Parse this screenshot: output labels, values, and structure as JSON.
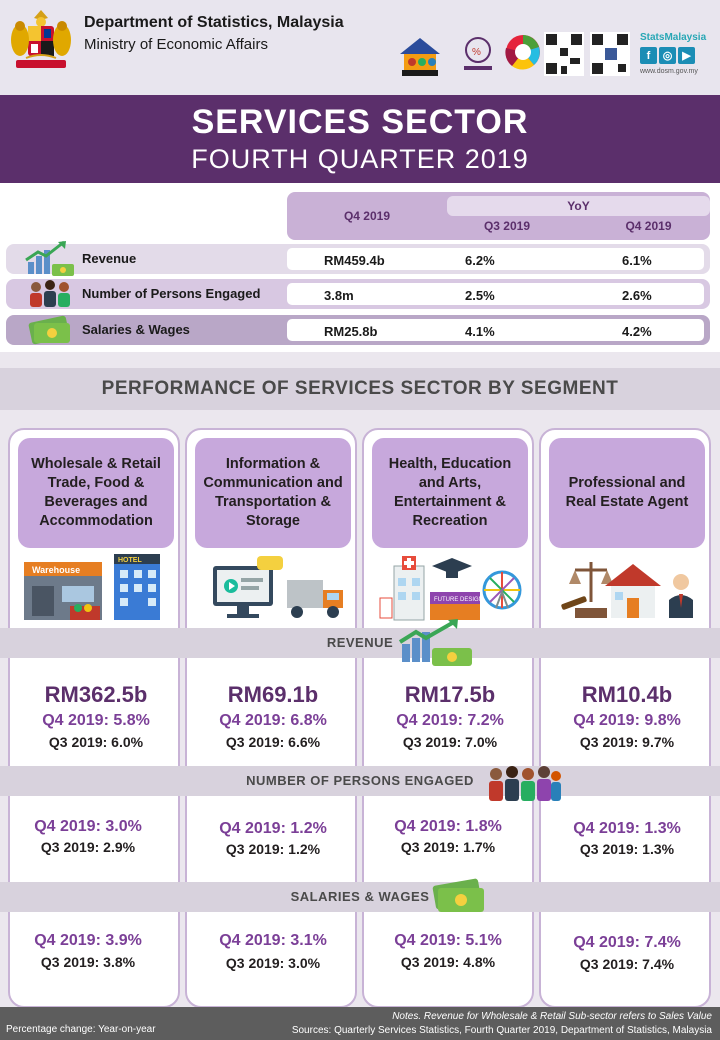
{
  "header": {
    "agency": "Department of Statistics, Malaysia",
    "ministry": "Ministry of Economic Affairs",
    "brand": "StatsMalaysia",
    "website": "www.dosm.gov.my"
  },
  "title": {
    "line1": "SERVICES SECTOR",
    "line2": "FOURTH QUARTER 2019"
  },
  "summary": {
    "col_q4": "Q4 2019",
    "col_yoy": "YoY",
    "col_yoy_q3": "Q3 2019",
    "col_yoy_q4": "Q4 2019",
    "rows": [
      {
        "label": "Revenue",
        "q4": "RM459.4b",
        "yoy_q3": "6.2%",
        "yoy_q4": "6.1%"
      },
      {
        "label": "Number of Persons Engaged",
        "q4": "3.8m",
        "yoy_q3": "2.5%",
        "yoy_q4": "2.6%"
      },
      {
        "label": "Salaries & Wages",
        "q4": "RM25.8b",
        "yoy_q3": "4.1%",
        "yoy_q4": "4.2%"
      }
    ]
  },
  "performance": {
    "title": "PERFORMANCE OF SERVICES SECTOR BY SEGMENT",
    "bands": {
      "revenue": "REVENUE",
      "persons": "NUMBER OF PERSONS  ENGAGED",
      "salaries": "SALARIES & WAGES"
    },
    "segments": [
      {
        "name": "Wholesale & Retail Trade, Food & Beverages and Accommodation",
        "revenue": "RM362.5b",
        "rev_q4": "Q4 2019: 5.8%",
        "rev_q3": "Q3 2019: 6.0%",
        "per_q4": "Q4 2019: 3.0%",
        "per_q3": "Q3 2019: 2.9%",
        "sal_q4": "Q4 2019: 3.9%",
        "sal_q3": "Q3 2019: 3.8%",
        "illus": {
          "warehouse": "Warehouse",
          "hotel": "HOTEL"
        }
      },
      {
        "name": "Information & Communication and Transportation & Storage",
        "revenue": "RM69.1b",
        "rev_q4": "Q4 2019: 6.8%",
        "rev_q3": "Q3 2019: 6.6%",
        "per_q4": "Q4 2019: 1.2%",
        "per_q3": "Q3 2019: 1.2%",
        "sal_q4": "Q4 2019: 3.1%",
        "sal_q3": "Q3 2019: 3.0%"
      },
      {
        "name": "Health, Education and Arts, Entertainment & Recreation",
        "revenue": "RM17.5b",
        "rev_q4": "Q4 2019: 7.2%",
        "rev_q3": "Q3 2019: 7.0%",
        "per_q4": "Q4 2019: 1.8%",
        "per_q3": "Q3 2019: 1.7%",
        "sal_q4": "Q4 2019: 5.1%",
        "sal_q3": "Q3 2019: 4.8%",
        "illus": {
          "sign": "FUTURE DESIGN"
        }
      },
      {
        "name": "Professional and Real Estate Agent",
        "revenue": "RM10.4b",
        "rev_q4": "Q4 2019: 9.8%",
        "rev_q3": "Q3 2019: 9.7%",
        "per_q4": "Q4 2019: 1.3%",
        "per_q3": "Q3 2019: 1.3%",
        "sal_q4": "Q4 2019: 7.4%",
        "sal_q3": "Q3 2019: 7.4%"
      }
    ]
  },
  "footer": {
    "percentage_note": "Percentage change: Year-on-year",
    "notes": "Notes. Revenue for Wholesale & Retail Sub-sector refers to Sales Value",
    "sources": "Sources: Quarterly Services Statistics, Fourth Quarter 2019, Department of Statistics, Malaysia"
  },
  "colors": {
    "title_band": "#5b2f6b",
    "segment_box": "#c7a8dc",
    "accent_text": "#7b3f97",
    "footer": "#5d5d5d"
  },
  "icons": [
    "coat-of-arms-icon",
    "census-logo-icon",
    "statistik-negara-logo-icon",
    "sdg-wheel-icon",
    "qr-code-icon",
    "facebook-icon",
    "instagram-icon",
    "youtube-icon",
    "revenue-chart-icon",
    "persons-group-icon",
    "money-stack-icon"
  ]
}
